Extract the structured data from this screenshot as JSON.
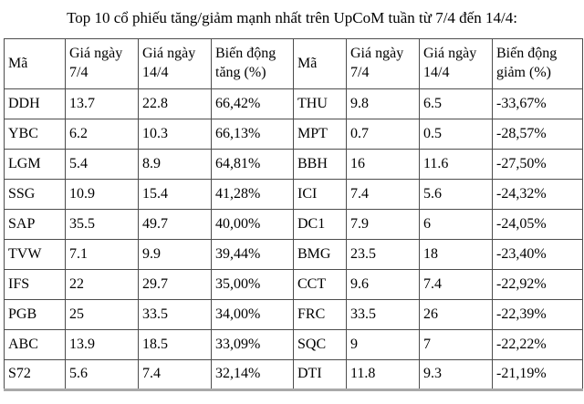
{
  "title": "Top 10 cổ phiếu tăng/giảm mạnh nhất trên UpCoM tuần từ 7/4 đến 14/4:",
  "table": {
    "headers": [
      "Mã",
      "Giá ngày 7/4",
      "Giá ngày 14/4",
      "Biến động tăng (%)",
      "Mã",
      "Giá ngày 7/4",
      "Giá ngày 14/4",
      "Biến động giảm (%)"
    ],
    "rows": [
      [
        "DDH",
        "13.7",
        "22.8",
        "66,42%",
        "THU",
        "9.8",
        "6.5",
        "-33,67%"
      ],
      [
        "YBC",
        "6.2",
        "10.3",
        "66,13%",
        "MPT",
        "0.7",
        "0.5",
        "-28,57%"
      ],
      [
        "LGM",
        "5.4",
        "8.9",
        "64,81%",
        "BBH",
        "16",
        "11.6",
        "-27,50%"
      ],
      [
        "SSG",
        "10.9",
        "15.4",
        "41,28%",
        "ICI",
        "7.4",
        "5.6",
        "-24,32%"
      ],
      [
        "SAP",
        "35.5",
        "49.7",
        "40,00%",
        "DC1",
        "7.9",
        "6",
        "-24,05%"
      ],
      [
        "TVW",
        "7.1",
        "9.9",
        "39,44%",
        "BMG",
        "23.5",
        "18",
        "-23,40%"
      ],
      [
        "IFS",
        "22",
        "29.7",
        "35,00%",
        "CCT",
        "9.6",
        "7.4",
        "-22,92%"
      ],
      [
        "PGB",
        "25",
        "33.5",
        "34,00%",
        "FRC",
        "33.5",
        "26",
        "-22,39%"
      ],
      [
        "ABC",
        "13.9",
        "18.5",
        "33,09%",
        "SQC",
        "9",
        "7",
        "-22,22%"
      ],
      [
        "S72",
        "5.6",
        "7.4",
        "32,14%",
        "DTI",
        "11.8",
        "9.3",
        "-21,19%"
      ]
    ]
  },
  "colors": {
    "text": "#000000",
    "border": "#4d4d4d",
    "table_bottom_border": "#a9a9a9",
    "background": "#ffffff"
  }
}
